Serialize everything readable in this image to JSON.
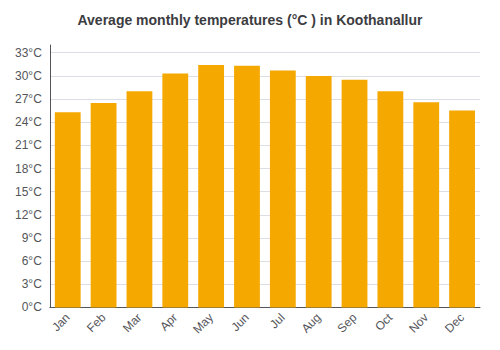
{
  "chart_data": {
    "type": "bar",
    "title": "Average monthly temperatures (°C ) in Koothanallur",
    "categories": [
      "Jan",
      "Feb",
      "Mar",
      "Apr",
      "May",
      "Jun",
      "Jul",
      "Aug",
      "Sep",
      "Oct",
      "Nov",
      "Dec"
    ],
    "values": [
      25.3,
      26.5,
      28.0,
      30.3,
      31.4,
      31.3,
      30.7,
      30.0,
      29.5,
      28.0,
      26.6,
      25.5
    ],
    "color": "#F5A800",
    "ylim": [
      0,
      34
    ],
    "yticks": [
      {
        "value": 0,
        "label": "0°C"
      },
      {
        "value": 3,
        "label": "3°C"
      },
      {
        "value": 6,
        "label": "6°C"
      },
      {
        "value": 9,
        "label": "9°C"
      },
      {
        "value": 12,
        "label": "12°C"
      },
      {
        "value": 15,
        "label": "15°C"
      },
      {
        "value": 18,
        "label": "18°C"
      },
      {
        "value": 21,
        "label": "21°C"
      },
      {
        "value": 24,
        "label": "24°C"
      },
      {
        "value": 27,
        "label": "27°C"
      },
      {
        "value": 30,
        "label": "30°C"
      },
      {
        "value": 33,
        "label": "33°C"
      }
    ],
    "grid": true
  }
}
